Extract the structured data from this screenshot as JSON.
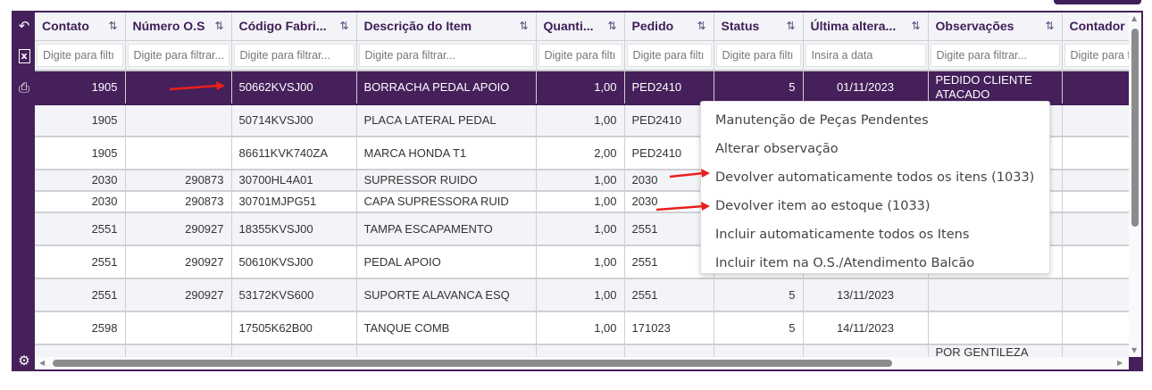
{
  "toolbar": {
    "icons": [
      "undo-icon",
      "excel-export-icon",
      "print-icon",
      "gear-icon"
    ]
  },
  "columns": [
    {
      "label": "Contato",
      "filter": "Digite para filtı"
    },
    {
      "label": "Número O.S",
      "filter": "Digite para filtrar..."
    },
    {
      "label": "Código Fabri...",
      "filter": "Digite para filtrar..."
    },
    {
      "label": "Descrição do Item",
      "filter": "Digite para filtrar..."
    },
    {
      "label": "Quanti...",
      "filter": "Digite para filtı"
    },
    {
      "label": "Pedido",
      "filter": "Digite para filtı"
    },
    {
      "label": "Status",
      "filter": "Digite para filtı"
    },
    {
      "label": "Última altera...",
      "filter": "Insira a data"
    },
    {
      "label": "Observações",
      "filter": "Digite para filtrar..."
    },
    {
      "label": "Contador",
      "filter": "Digite para filtrar..."
    }
  ],
  "sort_icon": "sort-arrows-icon",
  "rows": [
    [
      "1905",
      "",
      "50662KVSJ00",
      "BORRACHA PEDAL APOIO",
      "1,00",
      "PED2410",
      "5",
      "01/11/2023",
      "PEDIDO CLIENTE ATACADO",
      ""
    ],
    [
      "1905",
      "",
      "50714KVSJ00",
      "PLACA LATERAL PEDAL",
      "1,00",
      "PED2410",
      "",
      "",
      "",
      ""
    ],
    [
      "1905",
      "",
      "86611KVK740ZA",
      "MARCA HONDA T1",
      "2,00",
      "PED2410",
      "",
      "",
      "",
      ""
    ],
    [
      "2030",
      "290873",
      "30700HL4A01",
      "SUPRESSOR RUIDO",
      "1,00",
      "2030",
      "",
      "",
      "",
      ""
    ],
    [
      "2030",
      "290873",
      "30701MJPG51",
      "CAPA SUPRESSORA RUID",
      "1,00",
      "2030",
      "",
      "",
      "",
      ""
    ],
    [
      "2551",
      "290927",
      "18355KVSJ00",
      "TAMPA ESCAPAMENTO",
      "1,00",
      "2551",
      "",
      "",
      "",
      ""
    ],
    [
      "2551",
      "290927",
      "50610KVSJ00",
      "PEDAL APOIO",
      "1,00",
      "2551",
      "",
      "",
      "",
      ""
    ],
    [
      "2551",
      "290927",
      "53172KVS600",
      "SUPORTE ALAVANCA ESQ",
      "1,00",
      "2551",
      "5",
      "13/11/2023",
      "",
      ""
    ],
    [
      "2598",
      "",
      "17505K62B00",
      "TANQUE COMB",
      "1,00",
      "171023",
      "5",
      "14/11/2023",
      "",
      ""
    ],
    [
      "",
      "",
      "",
      "",
      "",
      "",
      "",
      "",
      "POR GENTILEZA",
      ""
    ]
  ],
  "selected_row": 0,
  "context_menu": {
    "items": [
      "Manutenção de Peças Pendentes",
      "Alterar observação",
      "Devolver automaticamente todos os itens (1033)",
      "Devolver item ao estoque (1033)",
      "Incluir automaticamente todos os Itens",
      "Incluir item na O.S./Atendimento Balcão"
    ]
  },
  "colors": {
    "brand": "#45205b",
    "annotation_arrow": "#e8201c"
  }
}
